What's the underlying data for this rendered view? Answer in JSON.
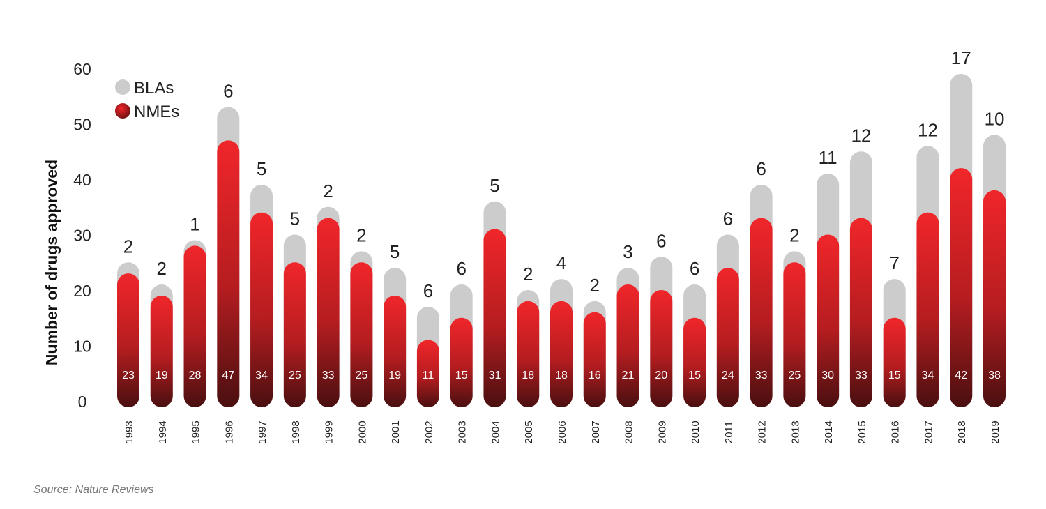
{
  "chart_data": {
    "type": "bar",
    "stacked": true,
    "ylabel": "Number of drugs approved",
    "ylim": [
      0,
      60
    ],
    "yticks": [
      0,
      10,
      20,
      30,
      40,
      50,
      60
    ],
    "grid": false,
    "legend_position": "top-left",
    "categories": [
      "1993",
      "1994",
      "1995",
      "1996",
      "1997",
      "1998",
      "1999",
      "2000",
      "2001",
      "2002",
      "2003",
      "2004",
      "2005",
      "2006",
      "2007",
      "2008",
      "2009",
      "2010",
      "2011",
      "2012",
      "2013",
      "2014",
      "2015",
      "2016",
      "2017",
      "2018",
      "2019"
    ],
    "series": [
      {
        "name": "NMEs",
        "color": "#e8262a",
        "values": [
          23,
          19,
          28,
          47,
          34,
          25,
          33,
          25,
          19,
          11,
          15,
          31,
          18,
          18,
          16,
          21,
          20,
          15,
          24,
          33,
          25,
          30,
          33,
          15,
          34,
          42,
          38
        ]
      },
      {
        "name": "BLAs",
        "color": "#cccccc",
        "values": [
          2,
          2,
          1,
          6,
          5,
          5,
          2,
          2,
          5,
          6,
          6,
          5,
          2,
          4,
          2,
          3,
          6,
          6,
          6,
          6,
          2,
          11,
          12,
          7,
          12,
          17,
          10
        ]
      }
    ]
  },
  "source": "Source: Nature Reviews"
}
